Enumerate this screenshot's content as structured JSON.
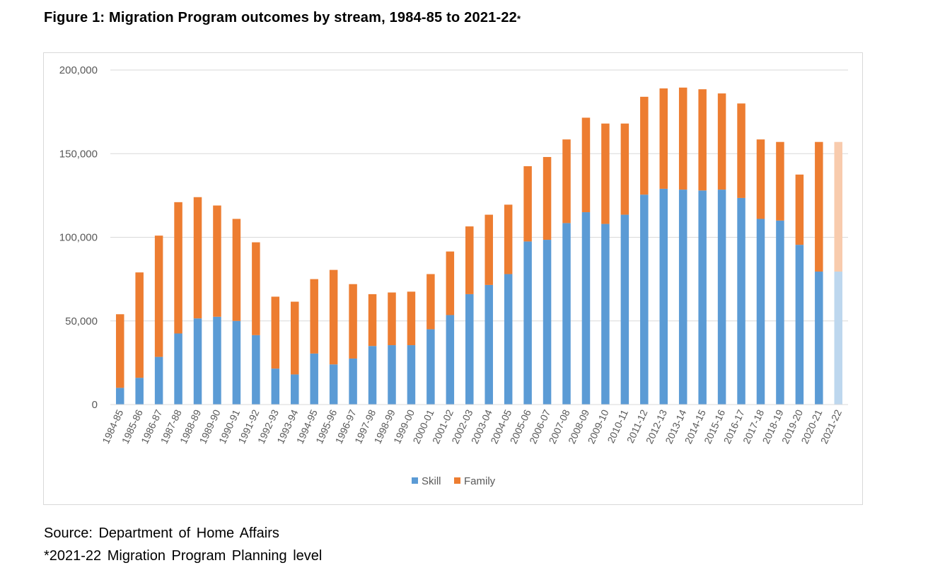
{
  "figure": {
    "title": "Figure 1: Migration Program outcomes by stream, 1984-85 to 2021-22",
    "title_marker": "*",
    "source": "Source: Department of Home Affairs",
    "footnote": "*2021-22 Migration Program Planning level"
  },
  "chart_data": {
    "type": "bar",
    "stacked": true,
    "title": "Figure 1: Migration Program outcomes by stream, 1984-85 to 2021-22*",
    "xlabel": "",
    "ylabel": "",
    "ylim": [
      0,
      200000
    ],
    "y_ticks": [
      0,
      50000,
      100000,
      150000,
      200000
    ],
    "y_tick_labels": [
      "0",
      "50,000",
      "100,000",
      "150,000",
      "200,000"
    ],
    "grid": true,
    "legend_position": "bottom",
    "categories": [
      "1984-85",
      "1985-86",
      "1986-87",
      "1987-88",
      "1988-89",
      "1989-90",
      "1990-91",
      "1991-92",
      "1992-93",
      "1993-94",
      "1994-95",
      "1995-96",
      "1996-97",
      "1997-98",
      "1998-99",
      "1999-00",
      "2000-01",
      "2001-02",
      "2002-03",
      "2003-04",
      "2004-05",
      "2005-06",
      "2006-07",
      "2007-08",
      "2008-09",
      "2009-10",
      "2010-11",
      "2011-12",
      "2012-13",
      "2013-14",
      "2014-15",
      "2015-16",
      "2016-17",
      "2017-18",
      "2018-19",
      "2019-20",
      "2020-21",
      "2021-22"
    ],
    "series": [
      {
        "name": "Skill",
        "color": "#5b9bd5",
        "highlight_color": "#bdd7ee",
        "values": [
          10000,
          16000,
          28500,
          42500,
          51500,
          52500,
          50000,
          41500,
          21500,
          18000,
          30500,
          24000,
          27500,
          35000,
          35500,
          35500,
          45000,
          53500,
          66000,
          71500,
          78000,
          97500,
          98500,
          108500,
          115000,
          108000,
          113500,
          125500,
          129000,
          128500,
          128000,
          128500,
          123500,
          111000,
          110000,
          95500,
          79500,
          79500
        ]
      },
      {
        "name": "Family",
        "color": "#ed7d31",
        "highlight_color": "#f8cbad",
        "values": [
          44000,
          63000,
          72500,
          78500,
          72500,
          66500,
          61000,
          55500,
          43000,
          43500,
          44500,
          56500,
          44500,
          31000,
          31500,
          32000,
          33000,
          38000,
          40500,
          42000,
          41500,
          45000,
          49500,
          50000,
          56500,
          60000,
          54500,
          58500,
          60000,
          61000,
          60500,
          57500,
          56500,
          47500,
          47000,
          42000,
          77500,
          77500
        ]
      }
    ],
    "highlighted_categories": [
      "2021-22"
    ]
  }
}
